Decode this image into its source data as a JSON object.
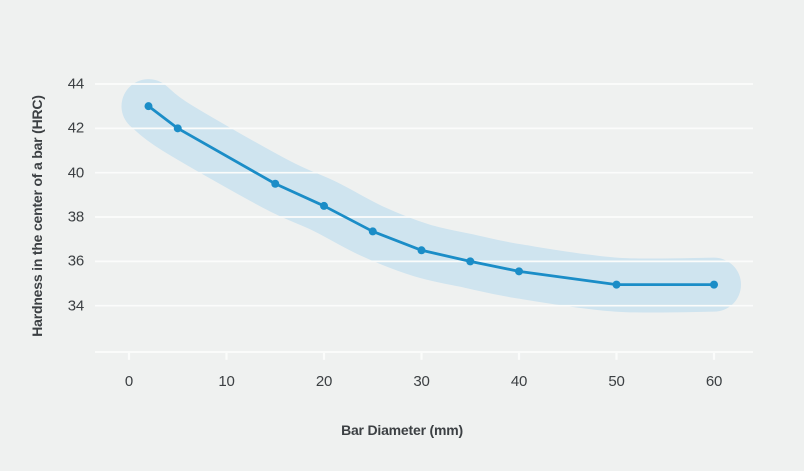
{
  "chart_data": {
    "type": "line",
    "title": "",
    "xlabel": "Bar Diameter (mm)",
    "ylabel": "Hardness in the center of a bar (HRC)",
    "x": [
      2,
      5,
      15,
      20,
      25,
      30,
      35,
      40,
      50,
      60
    ],
    "series": [
      {
        "name": "hardness-at-bar-center",
        "values": [
          43,
          42,
          39.5,
          38.5,
          37.35,
          36.5,
          36,
          35.55,
          34.95,
          34.95
        ]
      }
    ],
    "band": {
      "type": "tolerance-band",
      "half_width_hrc": 1.2
    },
    "xticks": [
      "0",
      "10",
      "20",
      "30",
      "40",
      "50",
      "60"
    ],
    "xtick_values": [
      0,
      10,
      20,
      30,
      40,
      50,
      60
    ],
    "yticks": [
      "44",
      "42",
      "40",
      "38",
      "36",
      "34"
    ],
    "ytick_values": [
      44,
      42,
      40,
      38,
      36,
      34
    ],
    "xlim": [
      0,
      60
    ],
    "ylim": [
      34,
      44
    ],
    "grid": true,
    "legend_position": "none",
    "colors": {
      "background": "#eff1f0",
      "gridline": "#fbfcfb",
      "band": "#cfe4ef",
      "line": "#1b8dc7",
      "marker": "#1b8dc7",
      "text": "#3c4043"
    }
  }
}
